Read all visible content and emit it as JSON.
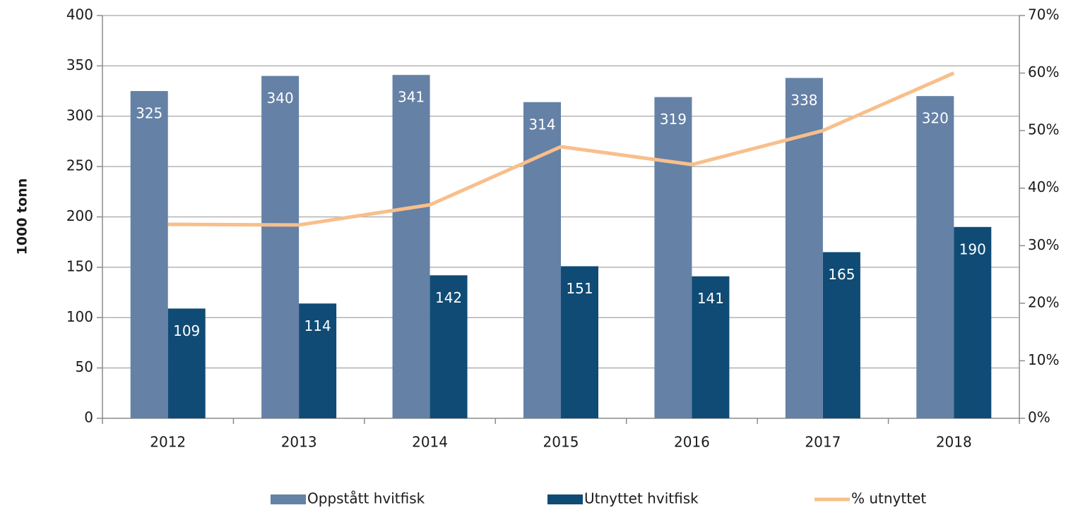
{
  "chart_data": {
    "type": "bar",
    "y_label": "1000 tonn",
    "categories": [
      "2012",
      "2013",
      "2014",
      "2015",
      "2016",
      "2017",
      "2018"
    ],
    "series": [
      {
        "name": "Oppstått hvitfisk",
        "color": "#6581a6",
        "values": [
          325,
          340,
          341,
          314,
          319,
          338,
          320
        ]
      },
      {
        "name": "Utnyttet hvitfisk",
        "color": "#0f4b75",
        "values": [
          109,
          114,
          142,
          151,
          141,
          165,
          190
        ]
      },
      {
        "name": "% utnyttet",
        "type": "line",
        "axis": "y2",
        "color": "#f8bf8b",
        "values": [
          33.7,
          33.6,
          37.1,
          47.2,
          44.1,
          50,
          60
        ]
      }
    ],
    "ylim": [
      0,
      400
    ],
    "yticks": [
      0,
      50,
      100,
      150,
      200,
      250,
      300,
      350,
      400
    ],
    "y2lim": [
      0,
      70
    ],
    "y2ticks": [
      {
        "value": 0,
        "label": "0%"
      },
      {
        "value": 10,
        "label": "10%"
      },
      {
        "value": 20,
        "label": "20%"
      },
      {
        "value": 30,
        "label": "30%"
      },
      {
        "value": 40,
        "label": "40%"
      },
      {
        "value": 50,
        "label": "50%"
      },
      {
        "value": 60,
        "label": "60%"
      },
      {
        "value": 70,
        "label": "70%"
      }
    ],
    "grid": true,
    "legend": "bottom"
  }
}
